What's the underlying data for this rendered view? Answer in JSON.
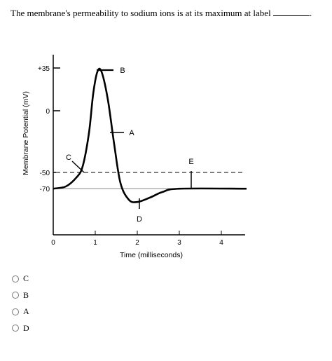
{
  "question": {
    "text": "The membrane's permeability to sodium ions is at its maximum at label",
    "blank_suffix": "."
  },
  "chart_data": {
    "type": "line",
    "ylabel": "Membrane Potential (mV)",
    "xlabel": "Time (milliseconds)",
    "x_ticks": [
      "0",
      "1",
      "2",
      "3",
      "4"
    ],
    "y_ticks": [
      "+35",
      "0",
      "-50",
      "-70"
    ],
    "xlim": [
      0,
      4.6
    ],
    "ylim": [
      -120,
      40
    ],
    "threshold_mv": -50,
    "resting_mv": -70,
    "series": [
      {
        "points": [
          [
            0,
            -70
          ],
          [
            0.3,
            -68
          ],
          [
            0.55,
            -60
          ],
          [
            0.7,
            -50
          ],
          [
            0.85,
            -20
          ],
          [
            0.95,
            15
          ],
          [
            1.05,
            35
          ],
          [
            1.15,
            35
          ],
          [
            1.3,
            10
          ],
          [
            1.45,
            -30
          ],
          [
            1.6,
            -65
          ],
          [
            1.8,
            -80
          ],
          [
            2.0,
            -82
          ],
          [
            2.3,
            -78
          ],
          [
            2.6,
            -73
          ],
          [
            3.0,
            -70
          ],
          [
            4.6,
            -70
          ]
        ]
      }
    ],
    "annotations": [
      {
        "label": "A",
        "x": 0.7,
        "y": -50
      },
      {
        "label": "B",
        "x": 1.1,
        "y": 35
      },
      {
        "label": "C",
        "x": 1.3,
        "y": -5
      },
      {
        "label": "D",
        "x": 2.0,
        "y": -82
      },
      {
        "label": "E",
        "x": 3.0,
        "y": -70
      }
    ]
  },
  "options": [
    {
      "label": "C"
    },
    {
      "label": "B"
    },
    {
      "label": "A"
    },
    {
      "label": "D"
    }
  ]
}
